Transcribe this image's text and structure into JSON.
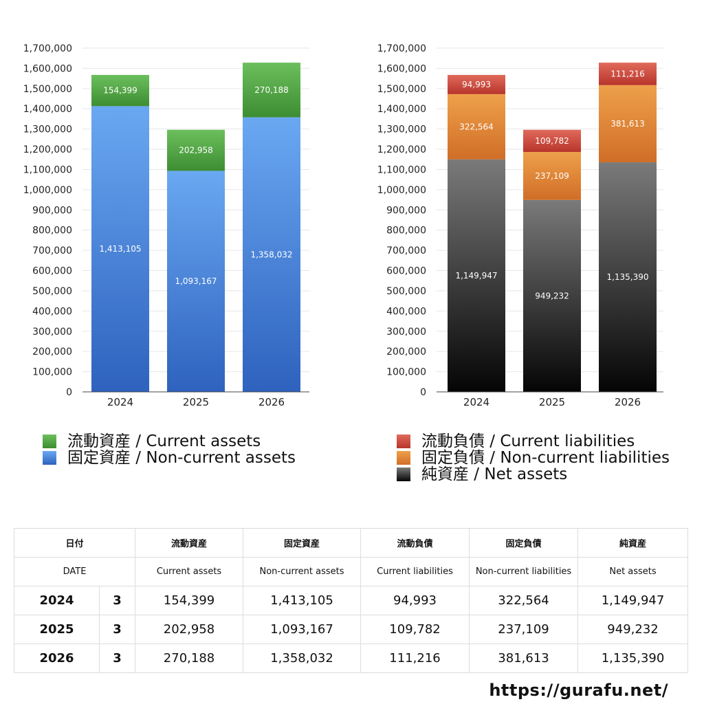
{
  "colors": {
    "current_assets": "#4a9a3c",
    "non_current_assets": "#3f80d6",
    "current_liabilities": "#c9473a",
    "non_current_liabilities": "#df7f30",
    "net_assets": "#2a2a2a"
  },
  "chart_data": [
    {
      "type": "bar",
      "stacked": true,
      "categories": [
        "2024",
        "2025",
        "2026"
      ],
      "series": [
        {
          "name": "固定資産 / Non-current assets",
          "key": "non_current_assets",
          "values": [
            1413105,
            1093167,
            1358032
          ],
          "labels": [
            "1,413,105",
            "1,093,167",
            "1,358,032"
          ]
        },
        {
          "name": "流動資産 / Current assets",
          "key": "current_assets",
          "values": [
            154399,
            202958,
            270188
          ],
          "labels": [
            "154,399",
            "202,958",
            "270,188"
          ]
        }
      ],
      "ylim": [
        0,
        1700000
      ],
      "yticks": [
        "0",
        "100,000",
        "200,000",
        "300,000",
        "400,000",
        "500,000",
        "600,000",
        "700,000",
        "800,000",
        "900,000",
        "1,000,000",
        "1,100,000",
        "1,200,000",
        "1,300,000",
        "1,400,000",
        "1,500,000",
        "1,600,000",
        "1,700,000"
      ],
      "grid": true,
      "legend": "bottom"
    },
    {
      "type": "bar",
      "stacked": true,
      "categories": [
        "2024",
        "2025",
        "2026"
      ],
      "series": [
        {
          "name": "純資産 / Net assets",
          "key": "net_assets",
          "values": [
            1149947,
            949232,
            1135390
          ],
          "labels": [
            "1,149,947",
            "949,232",
            "1,135,390"
          ]
        },
        {
          "name": "固定負債 / Non-current liabilities",
          "key": "non_current_liabilities",
          "values": [
            322564,
            237109,
            381613
          ],
          "labels": [
            "322,564",
            "237,109",
            "381,613"
          ]
        },
        {
          "name": "流動負債 / Current liabilities",
          "key": "current_liabilities",
          "values": [
            94993,
            109782,
            111216
          ],
          "labels": [
            "94,993",
            "109,782",
            "111,216"
          ]
        }
      ],
      "ylim": [
        0,
        1700000
      ],
      "yticks": [
        "0",
        "100,000",
        "200,000",
        "300,000",
        "400,000",
        "500,000",
        "600,000",
        "700,000",
        "800,000",
        "900,000",
        "1,000,000",
        "1,100,000",
        "1,200,000",
        "1,300,000",
        "1,400,000",
        "1,500,000",
        "1,600,000",
        "1,700,000"
      ],
      "grid": true,
      "legend": "bottom"
    }
  ],
  "legend_left": [
    "流動資産 / Current assets",
    "固定資産 / Non-current assets"
  ],
  "legend_right": [
    "流動負債 / Current liabilities",
    "固定負債 / Non-current liabilities",
    "純資産 / Net assets"
  ],
  "table": {
    "header_jp": [
      "日付",
      "",
      "流動資産",
      "固定資産",
      "流動負債",
      "固定負債",
      "純資産"
    ],
    "header_en": [
      "DATE",
      "",
      "Current assets",
      "Non-current assets",
      "Current liabilities",
      "Non-current liabilities",
      "Net assets"
    ],
    "rows": [
      [
        "2024",
        "3",
        "154,399",
        "1,413,105",
        "94,993",
        "322,564",
        "1,149,947"
      ],
      [
        "2025",
        "3",
        "202,958",
        "1,093,167",
        "109,782",
        "237,109",
        "949,232"
      ],
      [
        "2026",
        "3",
        "270,188",
        "1,358,032",
        "111,216",
        "381,613",
        "1,135,390"
      ]
    ]
  },
  "site": "https://gurafu.net/"
}
